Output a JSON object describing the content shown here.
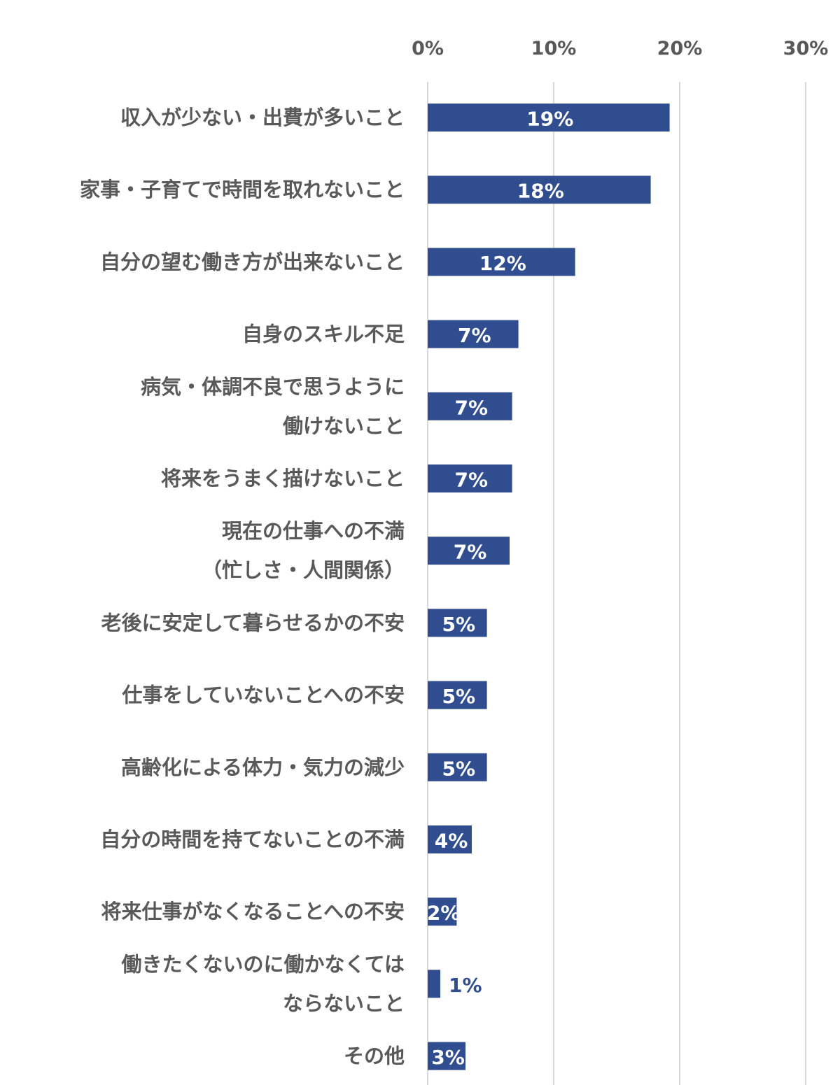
{
  "colors": {
    "bar": "#2f4d8f",
    "grid": "#d9d9d9",
    "text": "#595959",
    "label_inside": "#ffffff",
    "label_outside": "#2f4d8f"
  },
  "chart_data": {
    "type": "bar",
    "orientation": "horizontal",
    "title": "",
    "xlabel": "",
    "ylabel": "",
    "xlim": [
      0,
      30
    ],
    "x_ticks": [
      "0%",
      "10%",
      "20%",
      "30%"
    ],
    "x_axis_position": "top",
    "grid": true,
    "categories": [
      [
        "収入が少ない・出費が多いこと"
      ],
      [
        "家事・子育てで時間を取れないこと"
      ],
      [
        "自分の望む働き方が出来ないこと"
      ],
      [
        "自身のスキル不足"
      ],
      [
        "病気・体調不良で思うように",
        "働けないこと"
      ],
      [
        "将来をうまく描けないこと"
      ],
      [
        "現在の仕事への不満",
        "（忙しさ・人間関係）"
      ],
      [
        "老後に安定して暮らせるかの不安"
      ],
      [
        "仕事をしていないことへの不安"
      ],
      [
        "高齢化による体力・気力の減少"
      ],
      [
        "自分の時間を持てないことの不満"
      ],
      [
        "将来仕事がなくなることへの不安"
      ],
      [
        "働きたくないのに働かなくては",
        "ならないこと"
      ],
      [
        "その他"
      ]
    ],
    "values": [
      19.2,
      17.7,
      11.7,
      7.2,
      6.7,
      6.7,
      6.5,
      4.7,
      4.7,
      4.7,
      3.5,
      2.3,
      1.0,
      3.0
    ],
    "value_labels": [
      "19%",
      "18%",
      "12%",
      "7%",
      "7%",
      "7%",
      "7%",
      "5%",
      "5%",
      "5%",
      "4%",
      "2%",
      "1%",
      "3%"
    ]
  }
}
